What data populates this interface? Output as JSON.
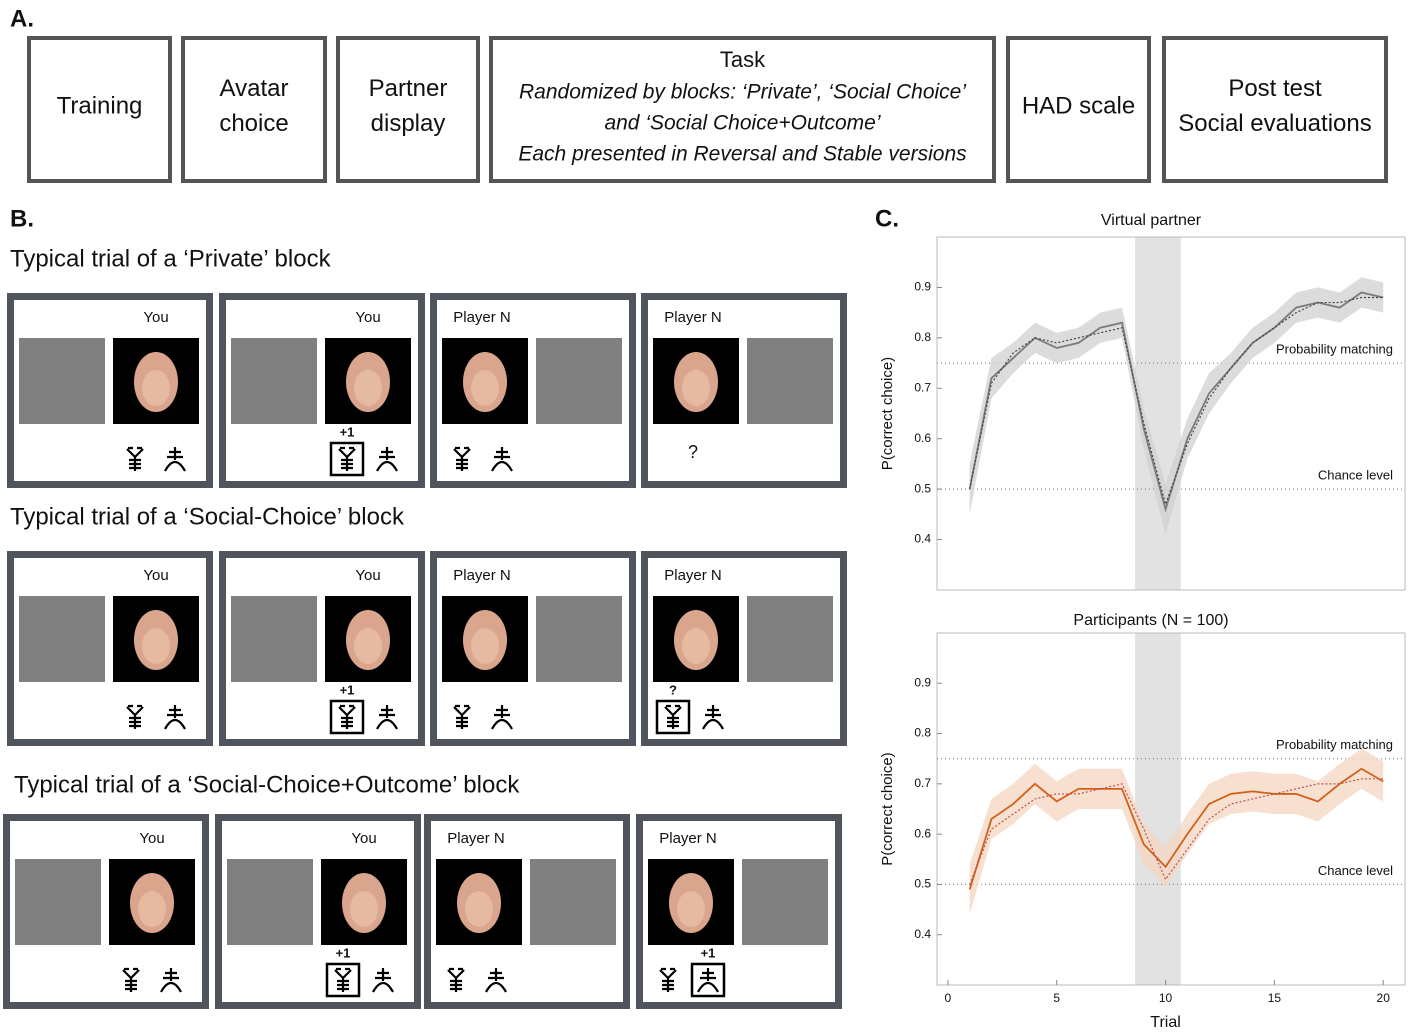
{
  "panel_a": {
    "label": "A.",
    "boxes": [
      {
        "lines": [
          "Training"
        ]
      },
      {
        "lines": [
          "Avatar",
          "choice"
        ]
      },
      {
        "lines": [
          "Partner",
          "display"
        ]
      },
      {
        "title": "Task",
        "lines": [
          "Randomized by blocks: ‘Private’, ‘Social Choice’",
          "and ‘Social Choice+Outcome’",
          "Each presented in Reversal and Stable versions"
        ]
      },
      {
        "lines": [
          "HAD scale"
        ]
      },
      {
        "lines": [
          "Post test",
          "Social evaluations"
        ]
      }
    ]
  },
  "panel_b": {
    "label": "B.",
    "blocks": [
      {
        "title": "Typical trial of a ‘Private’ block",
        "trials": [
          {
            "header": "You"
          },
          {
            "header": "You",
            "feedback": "+1"
          },
          {
            "header": "Player N"
          },
          {
            "header": "Player N",
            "query": "?"
          }
        ]
      },
      {
        "title": "Typical trial of a ‘Social-Choice’ block",
        "trials": [
          {
            "header": "You"
          },
          {
            "header": "You",
            "feedback": "+1"
          },
          {
            "header": "Player N"
          },
          {
            "header": "Player N",
            "query": "?"
          }
        ]
      },
      {
        "title": "Typical trial of a ‘Social-Choice+Outcome’ block",
        "trials": [
          {
            "header": "You"
          },
          {
            "header": "You",
            "feedback": "+1"
          },
          {
            "header": "Player N"
          },
          {
            "header": "Player N",
            "feedback": "+1"
          }
        ]
      }
    ]
  },
  "panel_c": {
    "label": "C.",
    "charts": [
      {
        "type": "line",
        "title": "Virtual partner",
        "ylabel": "P(correct choice)",
        "xlim": [
          -0.5,
          21
        ],
        "ylim": [
          0.3,
          1.0
        ],
        "yticks": [
          0.4,
          0.5,
          0.6,
          0.7,
          0.8,
          0.9
        ],
        "shaded_region": [
          8.6,
          10.7
        ],
        "reference_lines": [
          {
            "value": 0.75,
            "label": "Probability matching"
          },
          {
            "value": 0.5,
            "label": "Chance level"
          }
        ],
        "x": [
          1,
          2,
          3,
          4,
          5,
          6,
          7,
          8,
          9,
          10,
          11,
          12,
          13,
          14,
          15,
          16,
          17,
          18,
          19,
          20
        ],
        "series": [
          {
            "color": "#7a7a7a",
            "line_style": "solid",
            "values": [
              0.5,
              0.72,
              0.76,
              0.8,
              0.78,
              0.79,
              0.82,
              0.83,
              0.62,
              0.46,
              0.6,
              0.69,
              0.74,
              0.79,
              0.82,
              0.86,
              0.87,
              0.86,
              0.89,
              0.88
            ],
            "ci": [
              0.05,
              0.04,
              0.03,
              0.03,
              0.03,
              0.03,
              0.03,
              0.03,
              0.04,
              0.05,
              0.04,
              0.04,
              0.03,
              0.03,
              0.03,
              0.03,
              0.03,
              0.03,
              0.03,
              0.03
            ],
            "band_color": "#d0d0d0"
          },
          {
            "color": "#444444",
            "line_style": "dotted",
            "values": [
              0.5,
              0.71,
              0.77,
              0.8,
              0.79,
              0.8,
              0.81,
              0.82,
              0.63,
              0.47,
              0.59,
              0.68,
              0.74,
              0.79,
              0.82,
              0.85,
              0.87,
              0.87,
              0.88,
              0.88
            ]
          }
        ]
      },
      {
        "type": "line",
        "title": "Participants (N = 100)",
        "ylabel": "P(correct choice)",
        "xlabel": "Trial",
        "xlim": [
          -0.5,
          21
        ],
        "ylim": [
          0.3,
          1.0
        ],
        "yticks": [
          0.4,
          0.5,
          0.6,
          0.7,
          0.8,
          0.9
        ],
        "xticks": [
          0,
          5,
          10,
          15,
          20
        ],
        "shaded_region": [
          8.6,
          10.7
        ],
        "reference_lines": [
          {
            "value": 0.75,
            "label": "Probability matching"
          },
          {
            "value": 0.5,
            "label": "Chance level"
          }
        ],
        "x": [
          1,
          2,
          3,
          4,
          5,
          6,
          7,
          8,
          9,
          10,
          11,
          12,
          13,
          14,
          15,
          16,
          17,
          18,
          19,
          20
        ],
        "series": [
          {
            "color": "#d2601a",
            "line_style": "solid",
            "values": [
              0.49,
              0.63,
              0.66,
              0.7,
              0.665,
              0.69,
              0.69,
              0.69,
              0.58,
              0.535,
              0.6,
              0.66,
              0.68,
              0.685,
              0.68,
              0.68,
              0.665,
              0.7,
              0.73,
              0.705
            ],
            "ci": [
              0.05,
              0.04,
              0.04,
              0.04,
              0.04,
              0.04,
              0.04,
              0.04,
              0.04,
              0.04,
              0.04,
              0.04,
              0.04,
              0.04,
              0.04,
              0.04,
              0.04,
              0.04,
              0.04,
              0.04
            ],
            "band_color": "#f6d6c2"
          },
          {
            "color": "#c0504d",
            "line_style": "dotted",
            "values": [
              0.5,
              0.61,
              0.64,
              0.67,
              0.68,
              0.68,
              0.69,
              0.7,
              0.61,
              0.51,
              0.57,
              0.63,
              0.66,
              0.67,
              0.68,
              0.69,
              0.7,
              0.7,
              0.71,
              0.71
            ]
          }
        ]
      }
    ]
  }
}
